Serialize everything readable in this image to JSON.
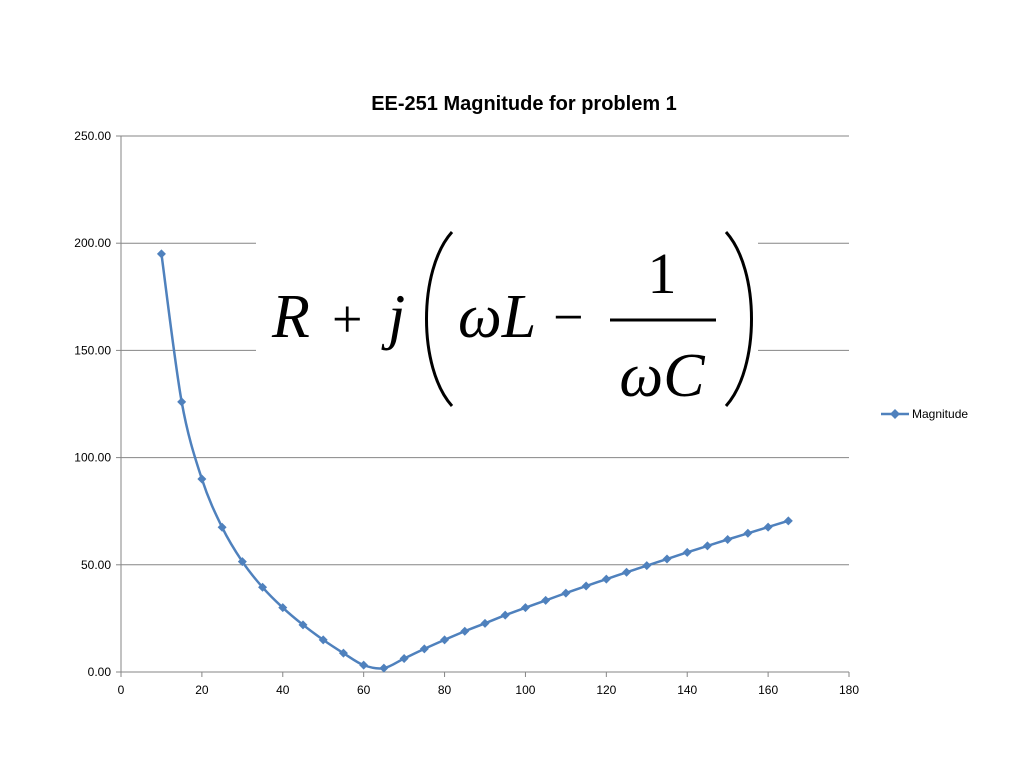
{
  "chart_data": {
    "type": "line",
    "title": "EE-251 Magnitude for problem 1",
    "xlabel": "",
    "ylabel": "",
    "xlim": [
      0,
      180
    ],
    "ylim": [
      0,
      250
    ],
    "x_ticks": [
      "0",
      "20",
      "40",
      "60",
      "80",
      "100",
      "120",
      "140",
      "160",
      "180"
    ],
    "y_ticks": [
      "0.00",
      "50.00",
      "100.00",
      "150.00",
      "200.00",
      "250.00"
    ],
    "grid": "horizontal",
    "legend_position": "right",
    "series": [
      {
        "name": "Magnitude",
        "color": "#4F81BD",
        "marker": "diamond",
        "x": [
          10,
          15,
          20,
          25,
          30,
          35,
          40,
          45,
          50,
          55,
          60,
          65,
          70,
          75,
          80,
          85,
          90,
          95,
          100,
          105,
          110,
          115,
          120,
          125,
          130,
          135,
          140,
          145,
          150,
          155,
          160,
          165
        ],
        "y": [
          195,
          126,
          90,
          67.5,
          51.5,
          39.5,
          30,
          22,
          15,
          8.8,
          3.2,
          1.8,
          6.3,
          10.8,
          15,
          19,
          22.7,
          26.5,
          30,
          33.4,
          36.8,
          40.1,
          43.3,
          46.5,
          49.6,
          52.7,
          55.8,
          58.8,
          61.8,
          64.7,
          67.6,
          70.5
        ]
      }
    ],
    "annotation": {
      "R": "R",
      "plus": "+",
      "j": "j",
      "omegaL": "ωL",
      "minus": "−",
      "one": "1",
      "omegaC": "ωC"
    }
  }
}
